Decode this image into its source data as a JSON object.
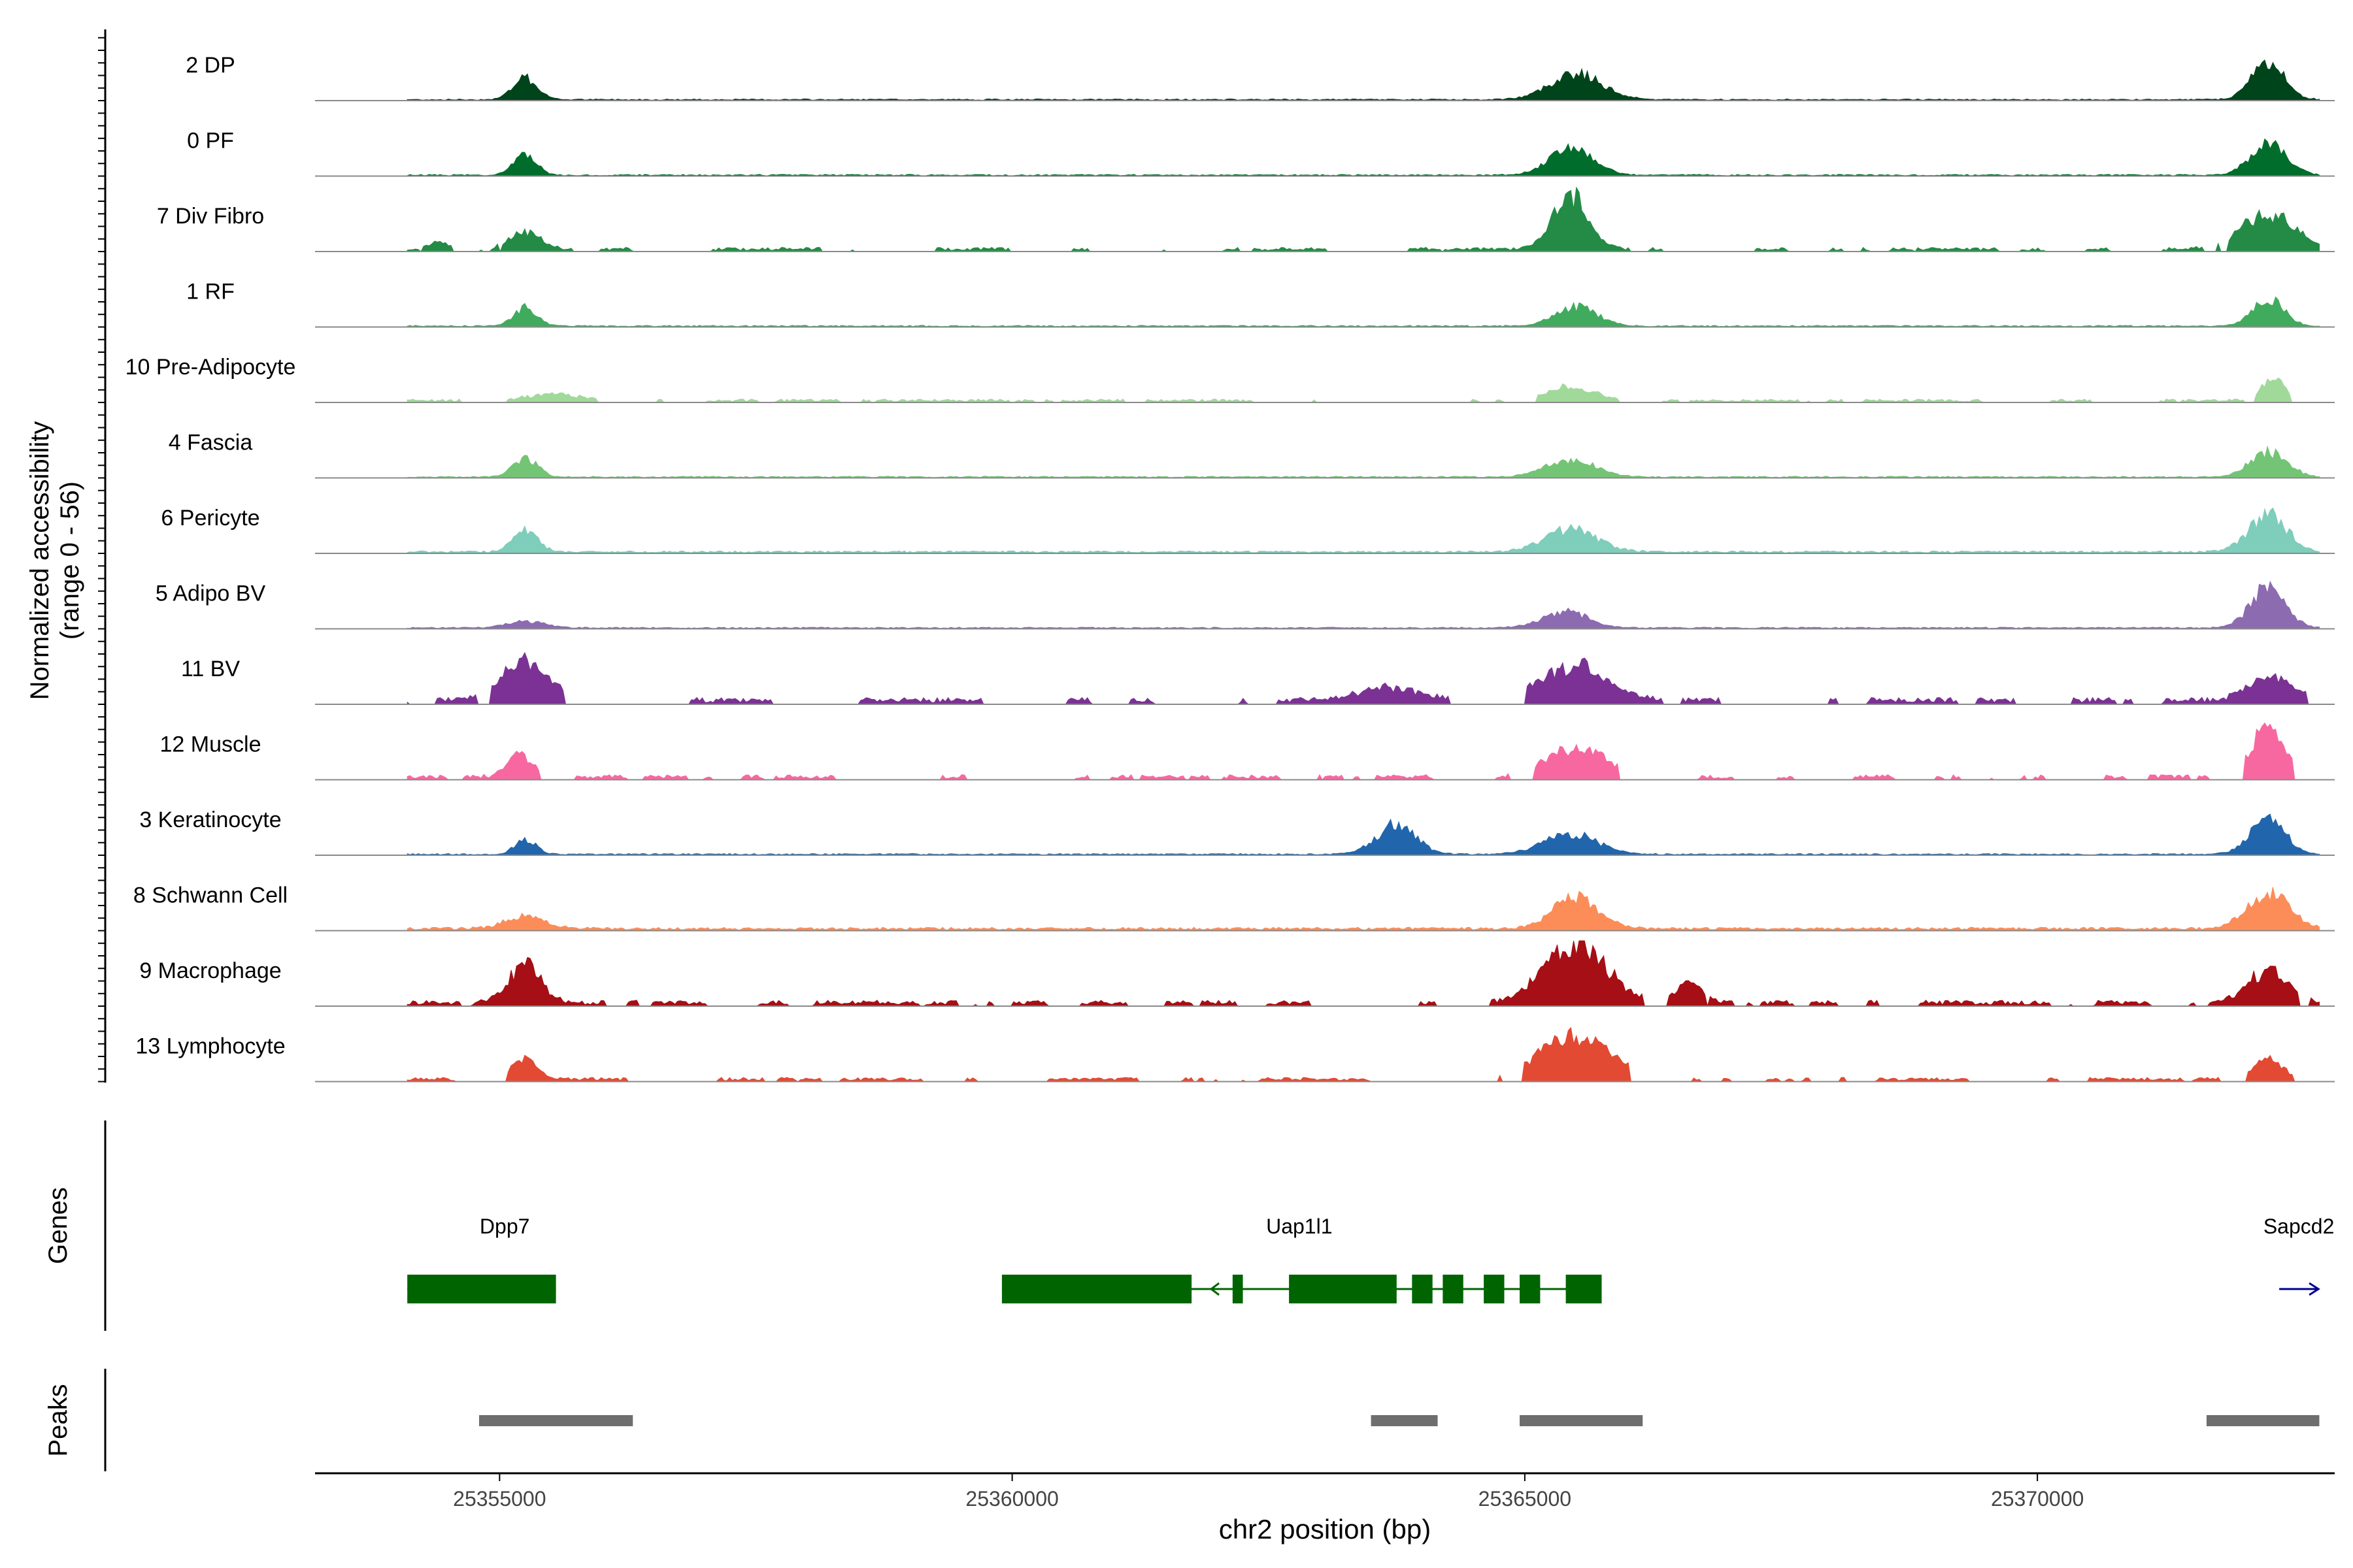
{
  "chart_data": {
    "type": "area",
    "chromosome": "chr2",
    "x_range": [
      25353200,
      25372900
    ],
    "xlabel": "chr2 position (bp)",
    "ylabel_line1": "Normalized accessibility",
    "ylabel_line2": "(range 0 - 56)",
    "y_range": [
      0,
      56
    ],
    "x_ticks": [
      {
        "value": 25355000,
        "label": "25355000"
      },
      {
        "value": 25360000,
        "label": "25360000"
      },
      {
        "value": 25365000,
        "label": "25365000"
      },
      {
        "value": 25370000,
        "label": "25370000"
      }
    ],
    "data_start": 25354100,
    "data_end": 25372750,
    "tracks": [
      {
        "label": "2 DP",
        "color": "#00441b",
        "peaks": [
          [
            25355250,
            0.32,
            120
          ],
          [
            25365500,
            0.4,
            250
          ],
          [
            25372250,
            0.55,
            160
          ]
        ],
        "noise": 0.02,
        "fragmented": false
      },
      {
        "label": "0 PF",
        "color": "#006d2c",
        "peaks": [
          [
            25355250,
            0.32,
            110
          ],
          [
            25365450,
            0.4,
            210
          ],
          [
            25372250,
            0.5,
            170
          ]
        ],
        "noise": 0.02,
        "fragmented": false
      },
      {
        "label": "7 Div Fibro",
        "color": "#238b45",
        "peaks": [
          [
            25355250,
            0.25,
            150
          ],
          [
            25365450,
            0.8,
            170
          ],
          [
            25372250,
            0.55,
            260
          ],
          [
            25354400,
            0.1,
            100
          ]
        ],
        "noise": 0.05,
        "fragmented": true
      },
      {
        "label": "1 RF",
        "color": "#41ab5d",
        "peaks": [
          [
            25355250,
            0.28,
            110
          ],
          [
            25365500,
            0.3,
            200
          ],
          [
            25372250,
            0.42,
            150
          ]
        ],
        "noise": 0.02,
        "fragmented": false
      },
      {
        "label": "10 Pre-Adipocyte",
        "color": "#a1d99b",
        "peaks": [
          [
            25355500,
            0.1,
            250
          ],
          [
            25365450,
            0.22,
            220
          ],
          [
            25372300,
            0.36,
            110
          ]
        ],
        "noise": 0.04,
        "fragmented": true
      },
      {
        "label": "4 Fascia",
        "color": "#74c476",
        "peaks": [
          [
            25355250,
            0.27,
            120
          ],
          [
            25365450,
            0.26,
            240
          ],
          [
            25372250,
            0.38,
            180
          ]
        ],
        "noise": 0.02,
        "fragmented": false
      },
      {
        "label": "6 Pericyte",
        "color": "#7fcdbb",
        "peaks": [
          [
            25355250,
            0.35,
            120
          ],
          [
            25365450,
            0.35,
            250
          ],
          [
            25372250,
            0.55,
            190
          ]
        ],
        "noise": 0.03,
        "fragmented": false
      },
      {
        "label": "5 Adipo BV",
        "color": "#8c6bb1",
        "peaks": [
          [
            25355250,
            0.1,
            180
          ],
          [
            25365400,
            0.25,
            220
          ],
          [
            25372250,
            0.6,
            170
          ]
        ],
        "noise": 0.02,
        "fragmented": false
      },
      {
        "label": "11 BV",
        "color": "#7b3294",
        "peaks": [
          [
            25355250,
            0.6,
            230
          ],
          [
            25365500,
            0.55,
            320
          ],
          [
            25372300,
            0.35,
            220
          ],
          [
            25363700,
            0.2,
            300
          ]
        ],
        "noise": 0.08,
        "fragmented": true
      },
      {
        "label": "12 Muscle",
        "color": "#f768a1",
        "peaks": [
          [
            25355200,
            0.35,
            120
          ],
          [
            25365500,
            0.45,
            280
          ],
          [
            25372250,
            0.75,
            160
          ]
        ],
        "noise": 0.06,
        "fragmented": true
      },
      {
        "label": "3 Keratinocyte",
        "color": "#2166ac",
        "peaks": [
          [
            25355250,
            0.22,
            100
          ],
          [
            25363750,
            0.45,
            190
          ],
          [
            25365450,
            0.3,
            260
          ],
          [
            25372250,
            0.52,
            170
          ]
        ],
        "noise": 0.02,
        "fragmented": false
      },
      {
        "label": "8 Schwann Cell",
        "color": "#fc8d59",
        "peaks": [
          [
            25355250,
            0.18,
            200
          ],
          [
            25365500,
            0.48,
            220
          ],
          [
            25372250,
            0.55,
            200
          ]
        ],
        "noise": 0.04,
        "fragmented": false
      },
      {
        "label": "9 Macrophage",
        "color": "#a50f15",
        "peaks": [
          [
            25355250,
            0.6,
            150
          ],
          [
            25365500,
            0.9,
            300
          ],
          [
            25366600,
            0.3,
            120
          ],
          [
            25372250,
            0.48,
            200
          ]
        ],
        "noise": 0.07,
        "fragmented": true
      },
      {
        "label": "13 Lymphocyte",
        "color": "#e34a33",
        "peaks": [
          [
            25355250,
            0.3,
            120
          ],
          [
            25365500,
            0.65,
            350
          ],
          [
            25372250,
            0.3,
            140
          ]
        ],
        "noise": 0.05,
        "fragmented": true
      }
    ],
    "genes_label": "Genes",
    "genes": [
      {
        "name": "Dpp7",
        "label_pos": 25355050,
        "strand": "-",
        "color": "#006400",
        "exons": [
          [
            25354100,
            25355550
          ]
        ]
      },
      {
        "name": "Uap1l1",
        "label_pos": 25362800,
        "strand": "-",
        "color": "#006400",
        "exons": [
          [
            25359900,
            25361750
          ],
          [
            25362150,
            25362250
          ],
          [
            25362700,
            25363750
          ],
          [
            25363900,
            25364100
          ],
          [
            25364200,
            25364400
          ],
          [
            25364600,
            25364800
          ],
          [
            25364950,
            25365150
          ],
          [
            25365400,
            25365750
          ]
        ]
      },
      {
        "name": "Sapcd2",
        "label_pos": 25372550,
        "strand": "+",
        "color": "#00008b",
        "exons": []
      }
    ],
    "peaks_label": "Peaks",
    "peak_regions": [
      [
        25354800,
        25356300
      ],
      [
        25363500,
        25364150
      ],
      [
        25364950,
        25366150
      ],
      [
        25371650,
        25372750
      ]
    ]
  }
}
